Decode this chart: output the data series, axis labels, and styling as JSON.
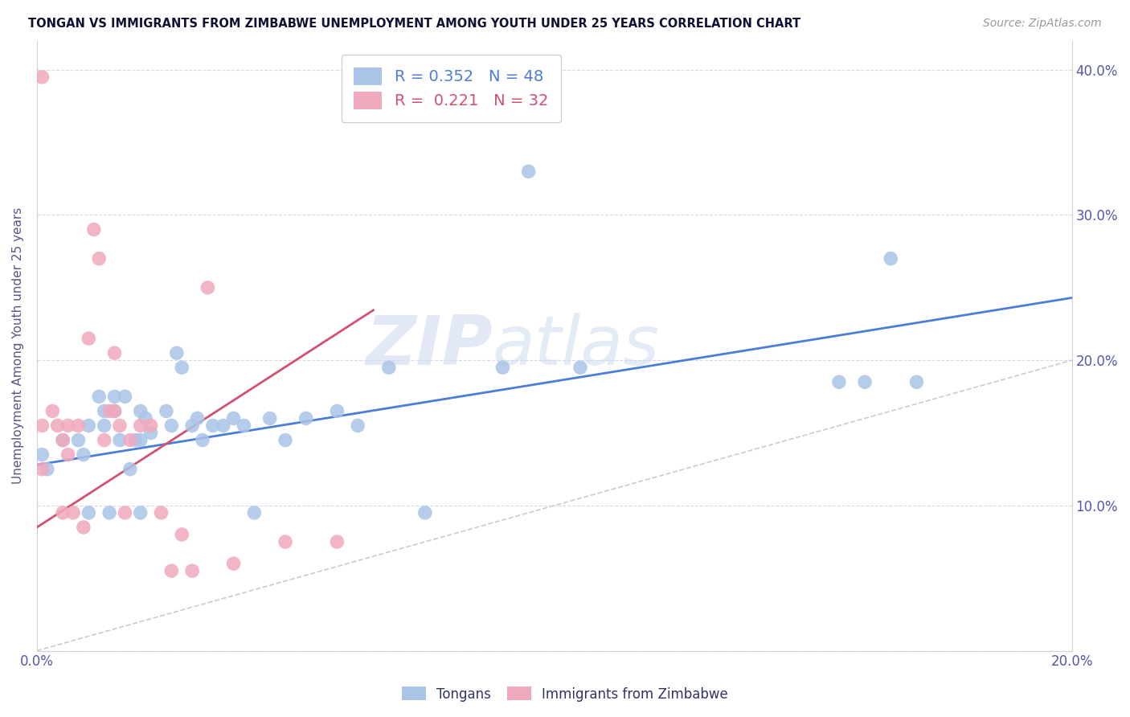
{
  "title": "TONGAN VS IMMIGRANTS FROM ZIMBABWE UNEMPLOYMENT AMONG YOUTH UNDER 25 YEARS CORRELATION CHART",
  "source": "Source: ZipAtlas.com",
  "ylabel": "Unemployment Among Youth under 25 years",
  "xlim": [
    0.0,
    0.2
  ],
  "ylim": [
    0.0,
    0.42
  ],
  "x_ticks": [
    0.0,
    0.05,
    0.1,
    0.15,
    0.2
  ],
  "y_ticks": [
    0.0,
    0.1,
    0.2,
    0.3,
    0.4
  ],
  "blue_color": "#aac4e8",
  "pink_color": "#f0a8bc",
  "blue_line_color": "#4a7fd4",
  "pink_line_color": "#d45070",
  "diagonal_color": "#cccccc",
  "legend_blue_label": "R = 0.352   N = 48",
  "legend_pink_label": "R =  0.221   N = 32",
  "legend_label_blue": "Tongans",
  "legend_label_pink": "Immigrants from Zimbabwe",
  "watermark_zip": "ZIP",
  "watermark_atlas": "atlas",
  "blue_intercept": 0.128,
  "blue_slope": 0.575,
  "pink_intercept": 0.085,
  "pink_slope": 2.3,
  "tongans_x": [
    0.001,
    0.002,
    0.005,
    0.008,
    0.009,
    0.01,
    0.01,
    0.012,
    0.013,
    0.013,
    0.014,
    0.015,
    0.015,
    0.016,
    0.017,
    0.018,
    0.019,
    0.02,
    0.02,
    0.02,
    0.021,
    0.022,
    0.025,
    0.026,
    0.027,
    0.028,
    0.03,
    0.031,
    0.032,
    0.034,
    0.036,
    0.038,
    0.04,
    0.042,
    0.045,
    0.048,
    0.052,
    0.058,
    0.062,
    0.068,
    0.075,
    0.09,
    0.095,
    0.105,
    0.155,
    0.16,
    0.165,
    0.17
  ],
  "tongans_y": [
    0.135,
    0.125,
    0.145,
    0.145,
    0.135,
    0.155,
    0.095,
    0.175,
    0.165,
    0.155,
    0.095,
    0.175,
    0.165,
    0.145,
    0.175,
    0.125,
    0.145,
    0.165,
    0.145,
    0.095,
    0.16,
    0.15,
    0.165,
    0.155,
    0.205,
    0.195,
    0.155,
    0.16,
    0.145,
    0.155,
    0.155,
    0.16,
    0.155,
    0.095,
    0.16,
    0.145,
    0.16,
    0.165,
    0.155,
    0.195,
    0.095,
    0.195,
    0.33,
    0.195,
    0.185,
    0.185,
    0.27,
    0.185
  ],
  "zimbabwe_x": [
    0.001,
    0.001,
    0.001,
    0.003,
    0.004,
    0.005,
    0.005,
    0.006,
    0.006,
    0.007,
    0.008,
    0.009,
    0.01,
    0.011,
    0.012,
    0.013,
    0.014,
    0.015,
    0.015,
    0.016,
    0.017,
    0.018,
    0.02,
    0.022,
    0.024,
    0.026,
    0.028,
    0.03,
    0.033,
    0.038,
    0.048,
    0.058
  ],
  "zimbabwe_y": [
    0.395,
    0.155,
    0.125,
    0.165,
    0.155,
    0.145,
    0.095,
    0.135,
    0.155,
    0.095,
    0.155,
    0.085,
    0.215,
    0.29,
    0.27,
    0.145,
    0.165,
    0.205,
    0.165,
    0.155,
    0.095,
    0.145,
    0.155,
    0.155,
    0.095,
    0.055,
    0.08,
    0.055,
    0.25,
    0.06,
    0.075,
    0.075
  ]
}
